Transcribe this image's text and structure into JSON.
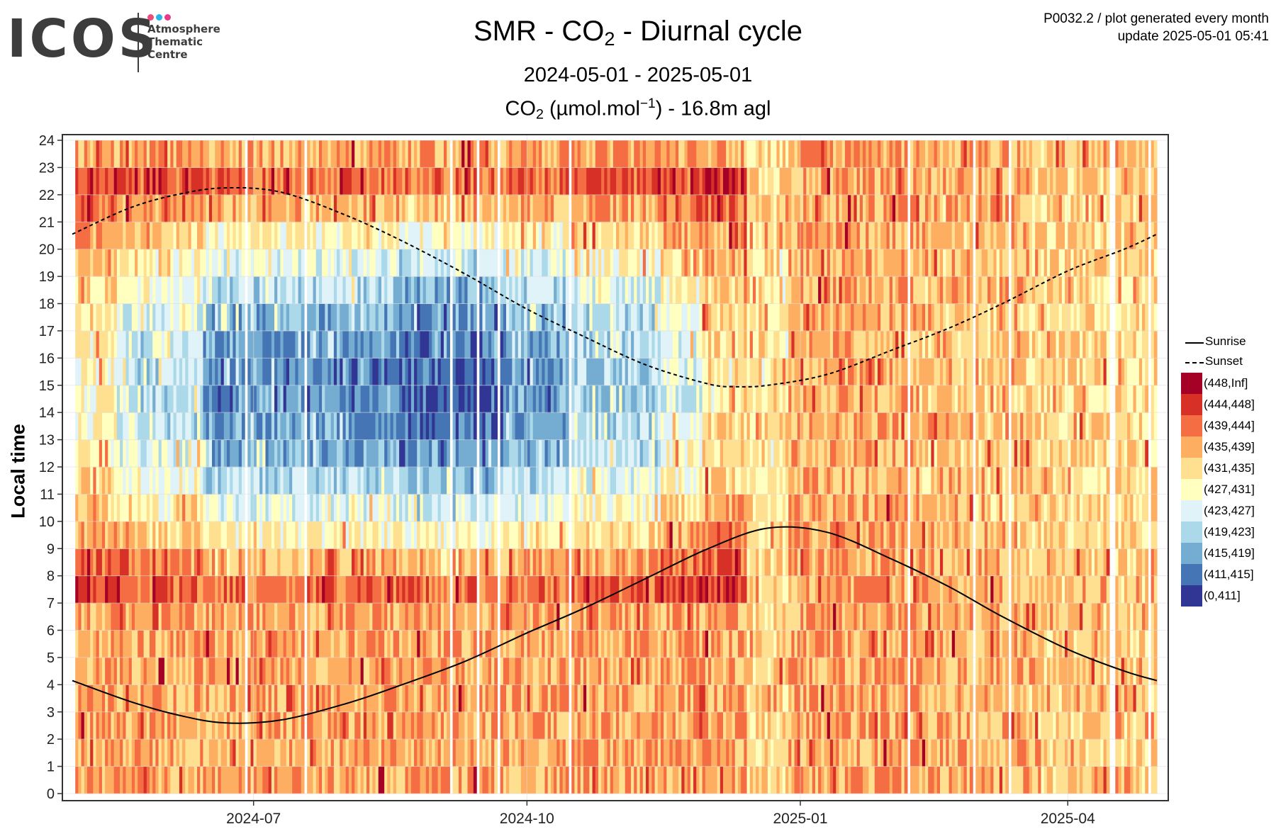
{
  "logo": {
    "word": "ICOS",
    "lines": [
      "Atmosphere",
      "Thematic",
      "Centre"
    ],
    "dot_colors": [
      "#ef4b7a",
      "#2ab4e8",
      "#e8398a"
    ]
  },
  "header": {
    "title_main": "SMR - CO",
    "title_sub": "2",
    "title_tail": " - Diurnal cycle",
    "date_range": "2024-05-01 - 2025-05-01",
    "variable_main": "CO",
    "variable_sub": "2",
    "variable_unit": " (µmol.mol",
    "variable_sup": "−1",
    "variable_tail": ") - 16.8m agl",
    "product_line": "P0032.2 / plot generated every month",
    "update_line": "update  2025-05-01 05:41"
  },
  "chart_data": {
    "type": "heatmap",
    "title": "SMR - CO2 - Diurnal cycle",
    "subtitle": "2024-05-01 - 2025-05-01",
    "variable": "CO2 (µmol.mol-1) - 16.8m agl",
    "ylabel": "Local time",
    "xlabel": "",
    "x_range": [
      "2024-05-01",
      "2025-05-01"
    ],
    "x_tick_labels": [
      "2024-07",
      "2024-10",
      "2025-01",
      "2025-04"
    ],
    "x_tick_dates": [
      "2024-07-01",
      "2024-10-01",
      "2025-01-01",
      "2025-04-01"
    ],
    "ylim": [
      0,
      24
    ],
    "y_ticks": [
      0,
      1,
      2,
      3,
      4,
      5,
      6,
      7,
      8,
      9,
      10,
      11,
      12,
      13,
      14,
      15,
      16,
      17,
      18,
      19,
      20,
      21,
      22,
      23,
      24
    ],
    "grid": true,
    "legend_position": "right",
    "color_classes": [
      {
        "label": "(448,Inf]",
        "color": "#a50026"
      },
      {
        "label": "(444,448]",
        "color": "#d73027"
      },
      {
        "label": "(439,444]",
        "color": "#f46d43"
      },
      {
        "label": "(435,439]",
        "color": "#fdae61"
      },
      {
        "label": "(431,435]",
        "color": "#fee090"
      },
      {
        "label": "(427,431]",
        "color": "#ffffbf"
      },
      {
        "label": "(423,427]",
        "color": "#e0f3f8"
      },
      {
        "label": "(419,423]",
        "color": "#abd9e9"
      },
      {
        "label": "(415,419]",
        "color": "#74add1"
      },
      {
        "label": "(411,415]",
        "color": "#4575b4"
      },
      {
        "label": "(0,411]",
        "color": "#313695"
      }
    ],
    "series": [
      {
        "name": "Sunrise",
        "style": "solid",
        "dates": [
          "2024-05-01",
          "2024-05-20",
          "2024-06-05",
          "2024-06-21",
          "2024-07-10",
          "2024-08-01",
          "2024-08-20",
          "2024-09-10",
          "2024-10-01",
          "2024-10-20",
          "2024-11-10",
          "2024-12-01",
          "2024-12-21",
          "2025-01-10",
          "2025-02-01",
          "2025-02-20",
          "2025-03-10",
          "2025-04-01",
          "2025-04-20",
          "2025-05-01"
        ],
        "values": [
          4.15,
          3.4,
          2.9,
          2.6,
          2.7,
          3.3,
          4.0,
          4.85,
          5.9,
          6.8,
          7.9,
          9.0,
          9.75,
          9.6,
          8.6,
          7.6,
          6.5,
          5.3,
          4.5,
          4.15
        ]
      },
      {
        "name": "Sunset",
        "style": "dashed",
        "dates": [
          "2024-05-01",
          "2024-05-20",
          "2024-06-05",
          "2024-06-21",
          "2024-07-10",
          "2024-08-01",
          "2024-08-20",
          "2024-09-10",
          "2024-10-01",
          "2024-10-20",
          "2024-11-10",
          "2024-12-01",
          "2024-12-10",
          "2024-12-21",
          "2025-01-10",
          "2025-02-01",
          "2025-02-20",
          "2025-03-10",
          "2025-04-01",
          "2025-04-20",
          "2025-05-01"
        ],
        "values": [
          20.55,
          21.5,
          22.0,
          22.25,
          22.1,
          21.25,
          20.3,
          19.1,
          17.8,
          16.8,
          15.75,
          15.05,
          14.95,
          15.0,
          15.4,
          16.3,
          17.1,
          18.0,
          19.2,
          20.0,
          20.55
        ]
      }
    ]
  }
}
